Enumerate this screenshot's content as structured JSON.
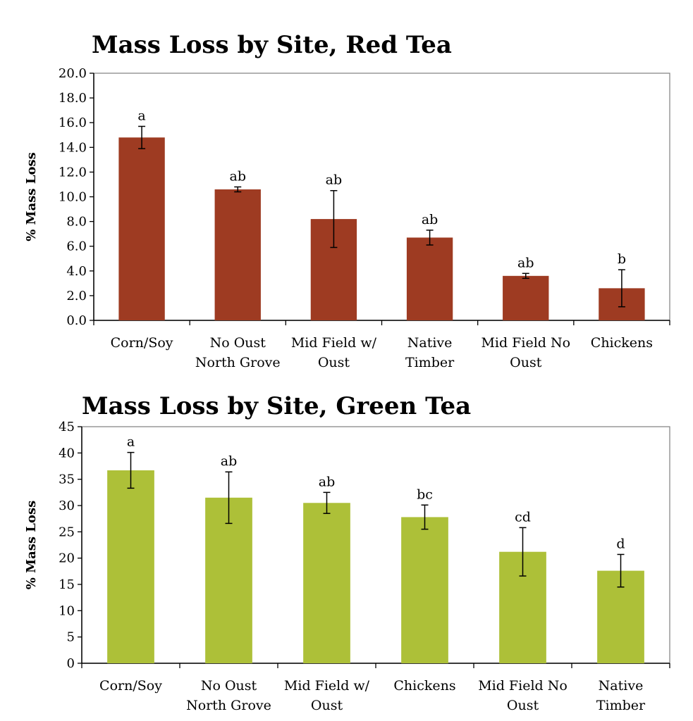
{
  "chart_data": [
    {
      "type": "bar",
      "title": "Mass Loss by Site, Red Tea",
      "ylabel": "% Mass Loss",
      "xlabel": "",
      "categories": [
        [
          "Corn/Soy"
        ],
        [
          "No Oust",
          "North Grove"
        ],
        [
          "Mid Field w/",
          "Oust"
        ],
        [
          "Native",
          "Timber"
        ],
        [
          "Mid Field No",
          "Oust"
        ],
        [
          "Chickens"
        ]
      ],
      "values": [
        14.8,
        10.6,
        8.2,
        6.7,
        3.6,
        2.6
      ],
      "error": [
        0.9,
        0.2,
        2.3,
        0.6,
        0.2,
        1.5
      ],
      "letters": [
        "a",
        "ab",
        "ab",
        "ab",
        "ab",
        "b"
      ],
      "ylim": [
        0,
        20
      ],
      "yticks": [
        0,
        2,
        4,
        6,
        8,
        10,
        12,
        14,
        16,
        18,
        20
      ],
      "ytick_decimals": 1,
      "color": "#9e3b22",
      "grid": false
    },
    {
      "type": "bar",
      "title": "Mass Loss by Site, Green Tea",
      "ylabel": "% Mass Loss",
      "xlabel": "",
      "categories": [
        [
          "Corn/Soy"
        ],
        [
          "No Oust",
          "North Grove"
        ],
        [
          "Mid Field w/",
          "Oust"
        ],
        [
          "Chickens"
        ],
        [
          "Mid Field No",
          "Oust"
        ],
        [
          "Native",
          "Timber"
        ]
      ],
      "values": [
        36.7,
        31.5,
        30.5,
        27.8,
        21.2,
        17.6
      ],
      "error": [
        3.4,
        4.9,
        2.0,
        2.3,
        4.6,
        3.1
      ],
      "letters": [
        "a",
        "ab",
        "ab",
        "bc",
        "cd",
        "d"
      ],
      "ylim": [
        0,
        45
      ],
      "yticks": [
        0,
        5,
        10,
        15,
        20,
        25,
        30,
        35,
        40,
        45
      ],
      "ytick_decimals": 0,
      "color": "#adc038",
      "grid": false
    }
  ]
}
